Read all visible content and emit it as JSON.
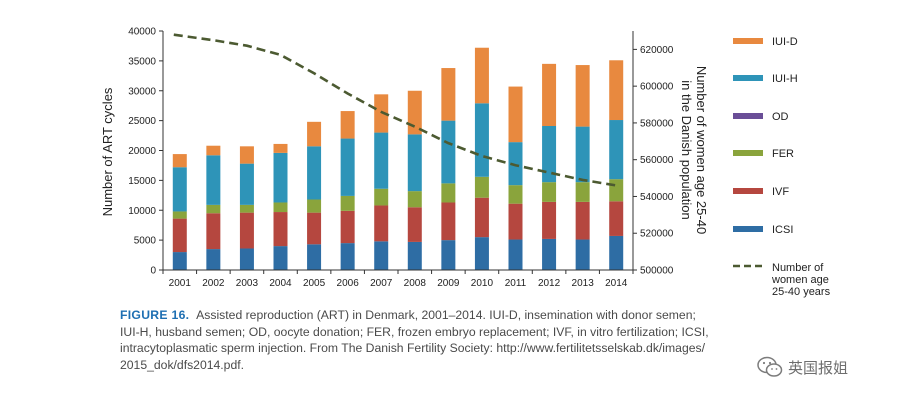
{
  "chart_data": {
    "type": "bar",
    "stacked": true,
    "categories": [
      "2001",
      "2002",
      "2003",
      "2004",
      "2005",
      "2006",
      "2007",
      "2008",
      "2009",
      "2010",
      "2011",
      "2012",
      "2013",
      "2014"
    ],
    "series": [
      {
        "name": "ICSI",
        "color": "#2e6da4",
        "values": [
          3000,
          3500,
          3600,
          4000,
          4300,
          4500,
          4800,
          4700,
          5000,
          5500,
          5100,
          5200,
          5100,
          5700
        ]
      },
      {
        "name": "IVF",
        "color": "#b5473f",
        "values": [
          5600,
          6000,
          6000,
          5700,
          5300,
          5400,
          6000,
          5800,
          6300,
          6600,
          6000,
          6200,
          6300,
          5800
        ]
      },
      {
        "name": "FER",
        "color": "#8aa43c",
        "values": [
          1200,
          1400,
          1300,
          1600,
          2200,
          2500,
          2800,
          2700,
          3200,
          3500,
          3100,
          3300,
          3300,
          3700
        ]
      },
      {
        "name": "OD",
        "color": "#6a4e97",
        "values": [
          0,
          0,
          0,
          0,
          0,
          0,
          0,
          0,
          0,
          0,
          0,
          0,
          0,
          0
        ]
      },
      {
        "name": "IUI-H",
        "color": "#2e94b8",
        "values": [
          7400,
          8300,
          6900,
          8300,
          8900,
          9600,
          9400,
          9500,
          10500,
          12300,
          7200,
          9400,
          9300,
          9900
        ]
      },
      {
        "name": "IUI-D",
        "color": "#e8893f",
        "values": [
          2200,
          1600,
          2900,
          1500,
          4100,
          4600,
          6400,
          7300,
          8800,
          9300,
          9300,
          10400,
          10300,
          10000
        ]
      }
    ],
    "line_series": {
      "name": "Number of women age 25-40 years",
      "color": "#4c5a31",
      "style": "dashed",
      "axis": "right",
      "values": [
        628000,
        625000,
        622000,
        617000,
        607000,
        596000,
        586000,
        578000,
        569000,
        562000,
        557000,
        553000,
        549000,
        546000
      ]
    },
    "yleft": {
      "label": "Number of ART cycles",
      "lim": [
        0,
        40000
      ],
      "ticks": [
        "0",
        "5000",
        "10000",
        "15000",
        "20000",
        "25000",
        "30000",
        "35000",
        "40000"
      ]
    },
    "yright": {
      "label_line1": "Number of women age 25-40",
      "label_line2": "in the Danish population",
      "lim": [
        500000,
        630000
      ],
      "ticks": [
        "500000",
        "520000",
        "540000",
        "560000",
        "580000",
        "600000",
        "620000"
      ]
    },
    "grid": false,
    "legend_position": "right",
    "legend_order": [
      "IUI-D",
      "IUI-H",
      "OD",
      "FER",
      "IVF",
      "ICSI"
    ],
    "legend_line_label": [
      "Number of",
      "women age",
      "25-40 years"
    ]
  },
  "caption": {
    "label": "FIGURE 16.",
    "lines": [
      "Assisted reproduction (ART) in Denmark, 2001–2014. IUI-D, insemination with donor semen;",
      "IUI-H, husband semen; OD, oocyte donation; FER, frozen embryo replacement; IVF, in vitro fertilization; ICSI,",
      "intracytoplasmatic sperm injection. From The Danish Fertility Society: http://www.fertilitetsselskab.dk/images/",
      "2015_dok/dfs2014.pdf."
    ]
  },
  "watermark": {
    "text": "英国报姐",
    "icon": "wechat-icon"
  }
}
